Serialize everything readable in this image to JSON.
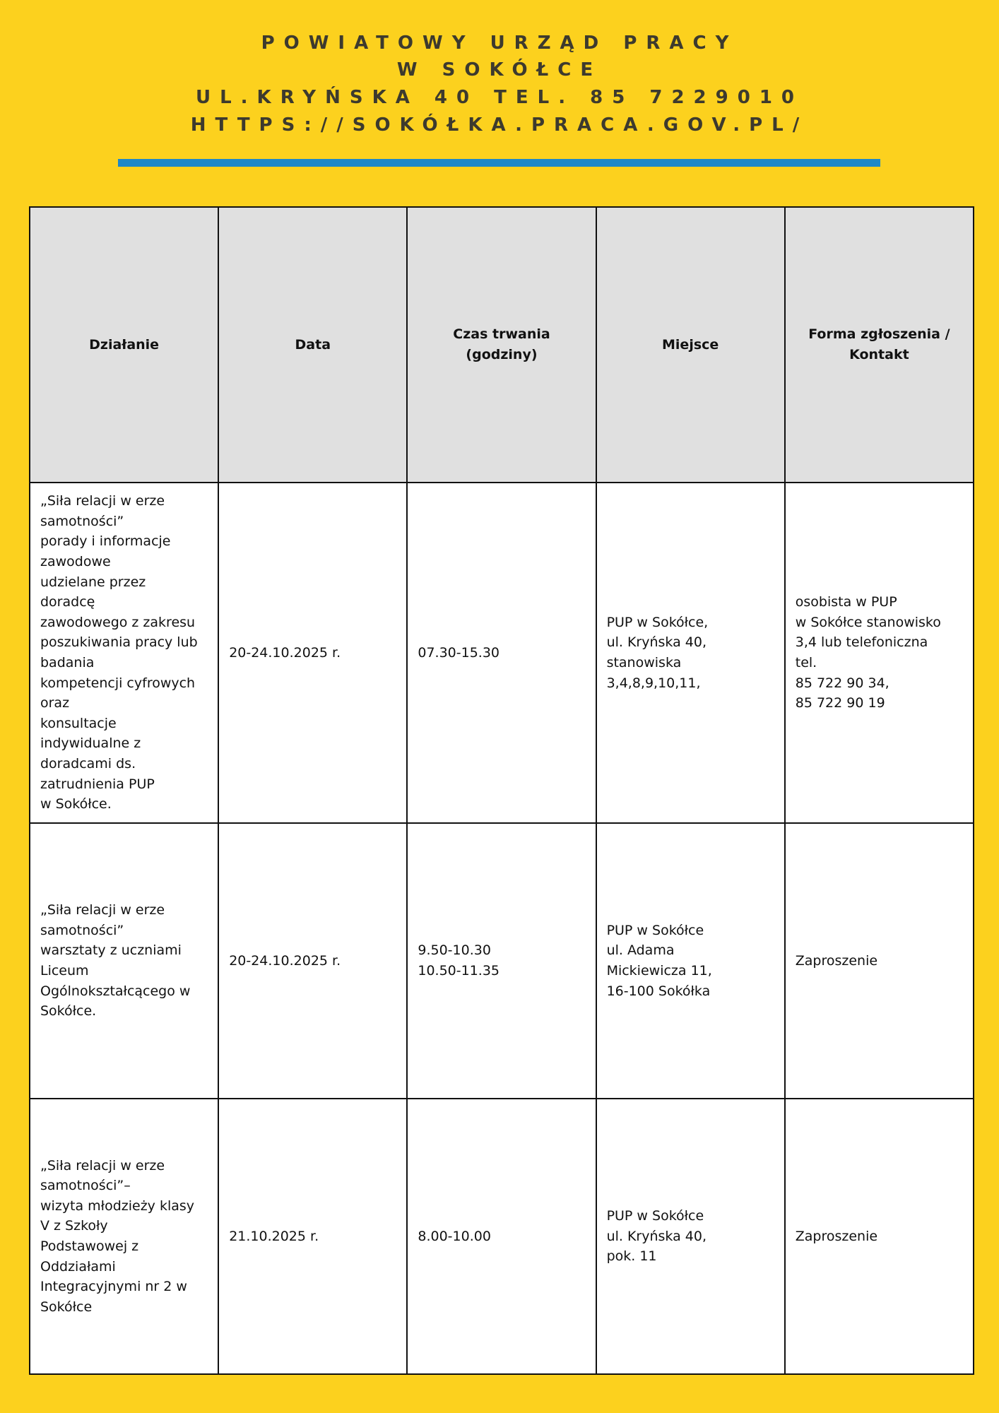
{
  "header": {
    "lines": [
      "POWIATOWY URZĄD PRACY",
      "W SOKÓŁCE",
      "UL.KRYŃSKA 40 TEL. 85 7229010",
      "HTTPS://SOKÓŁKA.PRACA.GOV.PL/"
    ],
    "accent_color": "#1e88c8",
    "background_color": "#fcd11e"
  },
  "table": {
    "columns": [
      "Działanie",
      "Data",
      "Czas trwania\n(godziny)",
      "Miejsce",
      "Forma zgłoszenia /\nKontakt"
    ],
    "rows": [
      [
        "„Siła relacji w erze\nsamotności”\nporady i informacje\nzawodowe\nudzielane przez\ndoradcę\nzawodowego z zakresu\nposzukiwania pracy lub\nbadania\nkompetencji cyfrowych\noraz\nkonsultacje\nindywidualne z\ndoradcami ds.\nzatrudnienia PUP\nw Sokółce.",
        "20-24.10.2025 r.",
        "07.30-15.30",
        "PUP w Sokółce,\nul. Kryńska 40,\nstanowiska\n3,4,8,9,10,11,",
        "osobista w PUP\nw Sokółce stanowisko\n3,4 lub telefoniczna\ntel.\n85 722 90 34,\n85 722 90 19"
      ],
      [
        "„Siła relacji w erze\nsamotności”\nwarsztaty z uczniami\nLiceum\nOgólnokształcącego w\nSokółce.",
        "20-24.10.2025 r.",
        "9.50-10.30\n10.50-11.35",
        "PUP w Sokółce\nul. Adama\nMickiewicza 11,\n16-100 Sokółka",
        "Zaproszenie"
      ],
      [
        "„Siła relacji w erze\nsamotności”–\nwizyta młodzieży klasy\nV z Szkoły\nPodstawowej z\nOddziałami\nIntegracyjnymi nr 2 w\nSokółce",
        "21.10.2025 r.",
        "8.00-10.00",
        "PUP w Sokółce\nul. Kryńska 40,\npok. 11",
        "Zaproszenie"
      ]
    ]
  }
}
